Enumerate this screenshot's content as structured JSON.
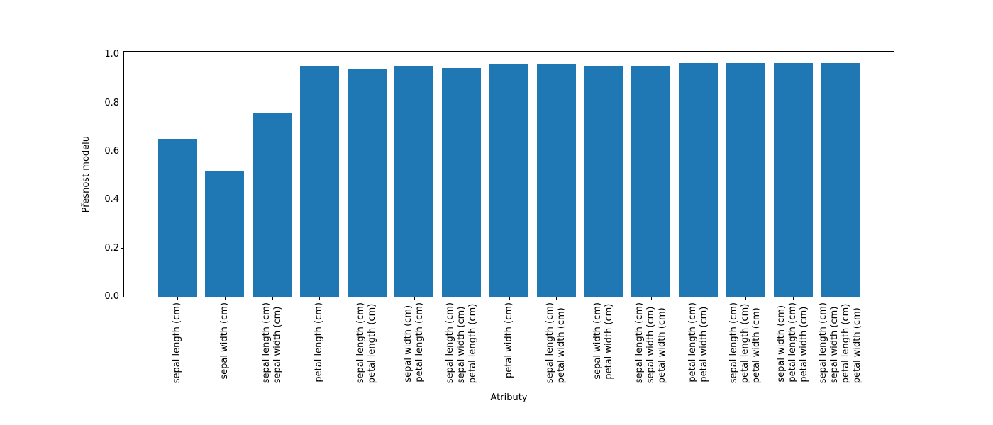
{
  "chart_data": {
    "type": "bar",
    "title": "",
    "xlabel": "Atributy",
    "ylabel": "Přesnost modelu",
    "ylim": [
      0,
      1.013
    ],
    "yticks": [
      0.0,
      0.2,
      0.4,
      0.6,
      0.8,
      1.0
    ],
    "grid": false,
    "legend": "none",
    "bar_color": "#1f77b4",
    "categories": [
      [
        "sepal length (cm)"
      ],
      [
        "sepal width (cm)"
      ],
      [
        "sepal length (cm)",
        "sepal width (cm)"
      ],
      [
        "petal length (cm)"
      ],
      [
        "sepal length (cm)",
        "petal length (cm)"
      ],
      [
        "sepal width (cm)",
        "petal length (cm)"
      ],
      [
        "sepal length (cm)",
        "sepal width (cm)",
        "petal length (cm)"
      ],
      [
        "petal width (cm)"
      ],
      [
        "sepal length (cm)",
        "petal width (cm)"
      ],
      [
        "sepal width (cm)",
        "petal width (cm)"
      ],
      [
        "sepal length (cm)",
        "sepal width (cm)",
        "petal width (cm)"
      ],
      [
        "petal length (cm)",
        "petal width (cm)"
      ],
      [
        "sepal length (cm)",
        "petal length (cm)",
        "petal width (cm)"
      ],
      [
        "sepal width (cm)",
        "petal length (cm)",
        "petal width (cm)"
      ],
      [
        "sepal length (cm)",
        "sepal width (cm)",
        "petal length (cm)",
        "petal width (cm)"
      ]
    ],
    "values": [
      0.6533,
      0.52,
      0.76,
      0.9533,
      0.94,
      0.9533,
      0.9467,
      0.96,
      0.96,
      0.9533,
      0.9533,
      0.9667,
      0.9667,
      0.9667,
      0.9667
    ]
  }
}
